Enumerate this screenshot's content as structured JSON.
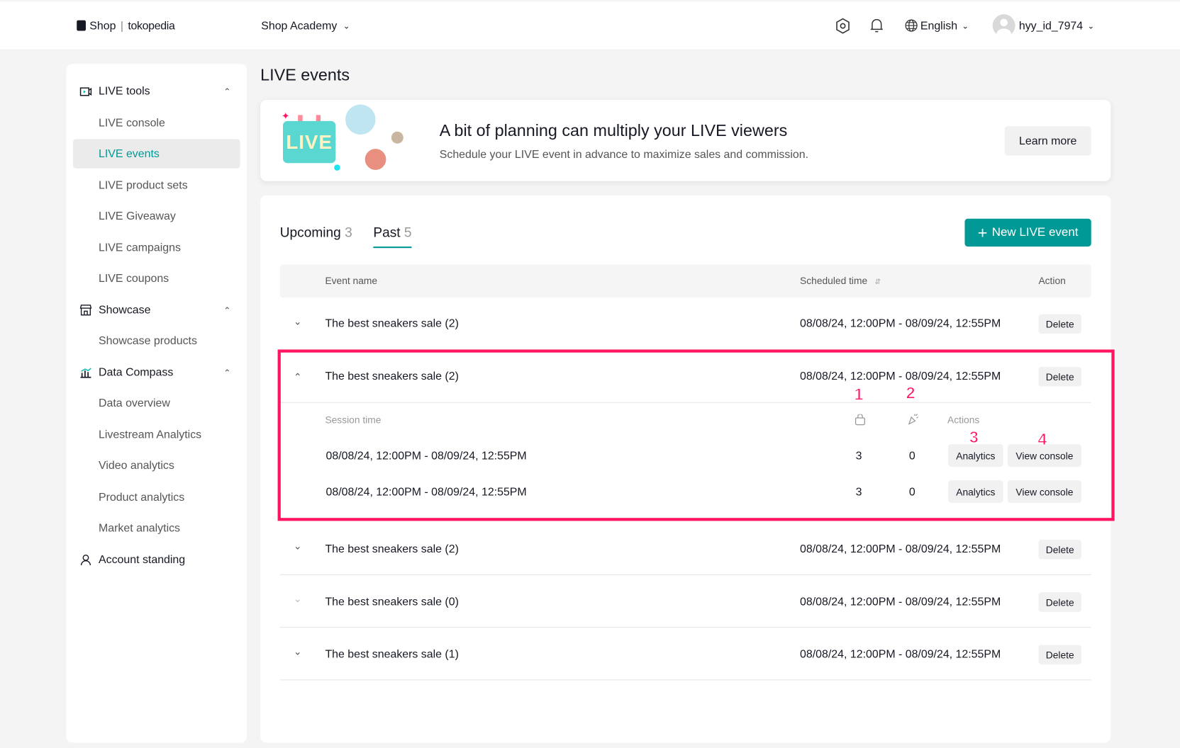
{
  "header": {
    "logo_shop": "Shop",
    "logo_partner": "tokopedia",
    "academy": "Shop Academy",
    "language": "English",
    "username": "hyy_id_7974"
  },
  "sidebar": {
    "groups": [
      {
        "label": "LIVE tools",
        "items": [
          "LIVE console",
          "LIVE events",
          "LIVE product sets",
          "LIVE Giveaway",
          "LIVE campaigns",
          "LIVE coupons"
        ]
      },
      {
        "label": "Showcase",
        "items": [
          "Showcase products"
        ]
      },
      {
        "label": "Data Compass",
        "items": [
          "Data overview",
          "Livestream Analytics",
          "Video analytics",
          "Product analytics",
          "Market analytics"
        ]
      },
      {
        "label": "Account standing",
        "items": []
      }
    ],
    "active": "LIVE events"
  },
  "page": {
    "title": "LIVE events"
  },
  "banner": {
    "badge": "LIVE",
    "heading": "A bit of planning can multiply your LIVE viewers",
    "subtext": "Schedule your LIVE event in advance to maximize sales and commission.",
    "button": "Learn more"
  },
  "tabs": [
    {
      "label": "Upcoming",
      "count": "3"
    },
    {
      "label": "Past",
      "count": "5",
      "active": true
    }
  ],
  "new_event_button": "New LIVE event",
  "table": {
    "columns": {
      "name": "Event name",
      "time": "Scheduled time",
      "action": "Action"
    },
    "delete_label": "Delete",
    "rows": [
      {
        "name": "The best sneakers sale (2)",
        "time": "08/08/24, 12:00PM - 08/09/24, 12:55PM"
      },
      {
        "name": "The best sneakers sale (2)",
        "time": "08/08/24, 12:00PM - 08/09/24, 12:55PM",
        "expanded": true
      },
      {
        "name": "The best sneakers sale (2)",
        "time": "08/08/24, 12:00PM - 08/09/24, 12:55PM"
      },
      {
        "name": "The best sneakers sale (0)",
        "time": "08/08/24, 12:00PM - 08/09/24, 12:55PM"
      },
      {
        "name": "The best sneakers sale (1)",
        "time": "08/08/24, 12:00PM - 08/09/24, 12:55PM"
      }
    ],
    "sessions": {
      "columns": {
        "time": "Session time",
        "actions": "Actions"
      },
      "analytics_label": "Analytics",
      "console_label": "View console",
      "rows": [
        {
          "time": "08/08/24, 12:00PM - 08/09/24, 12:55PM",
          "orders": "3",
          "giveaways": "0"
        },
        {
          "time": "08/08/24, 12:00PM - 08/09/24, 12:55PM",
          "orders": "3",
          "giveaways": "0"
        }
      ]
    }
  },
  "annotations": [
    "1",
    "2",
    "3",
    "4"
  ],
  "colors": {
    "accent": "#009995",
    "highlight": "#ff1560",
    "background": "#f4f4f4"
  }
}
